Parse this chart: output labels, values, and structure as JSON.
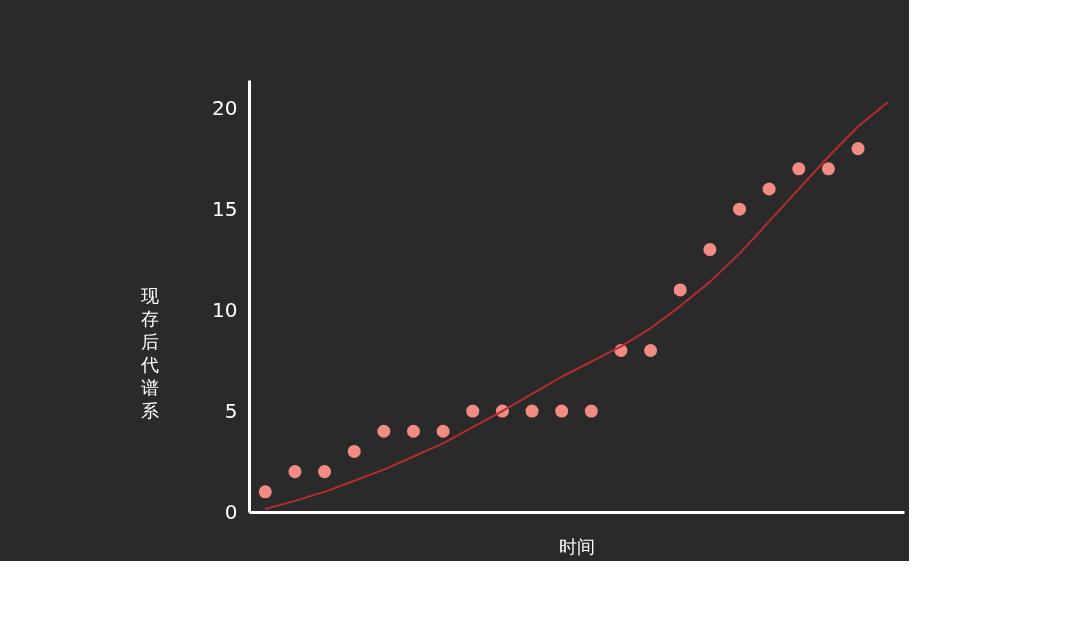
{
  "chart_data": {
    "type": "scatter",
    "xlabel": "时间",
    "ylabel": "现存后代谱系",
    "categories": [
      null,
      null,
      null,
      null,
      null,
      null,
      null,
      null,
      null,
      null,
      null,
      null,
      null,
      null,
      null,
      null,
      null,
      null,
      null,
      null,
      null,
      null
    ],
    "series": [
      {
        "color": "#f28b82",
        "marker": "circle",
        "values": [
          1,
          2,
          2,
          3,
          4,
          4,
          4,
          5,
          5,
          5,
          5,
          5,
          8,
          8,
          11,
          13,
          15,
          16,
          17,
          17,
          18,
          null
        ]
      },
      {
        "type": "line",
        "color": "#b22e2e",
        "values": [
          0.15,
          0.55,
          1.0,
          1.55,
          2.1,
          2.75,
          3.4,
          4.2,
          5.0,
          5.85,
          6.7,
          7.45,
          8.2,
          9.1,
          10.2,
          11.4,
          12.8,
          14.4,
          16.0,
          17.6,
          19.1,
          20.3
        ]
      }
    ],
    "ylim": [
      0,
      21.4
    ],
    "yticks": [
      0,
      5,
      10,
      15,
      20
    ],
    "grid": false,
    "line_style": "solid"
  }
}
